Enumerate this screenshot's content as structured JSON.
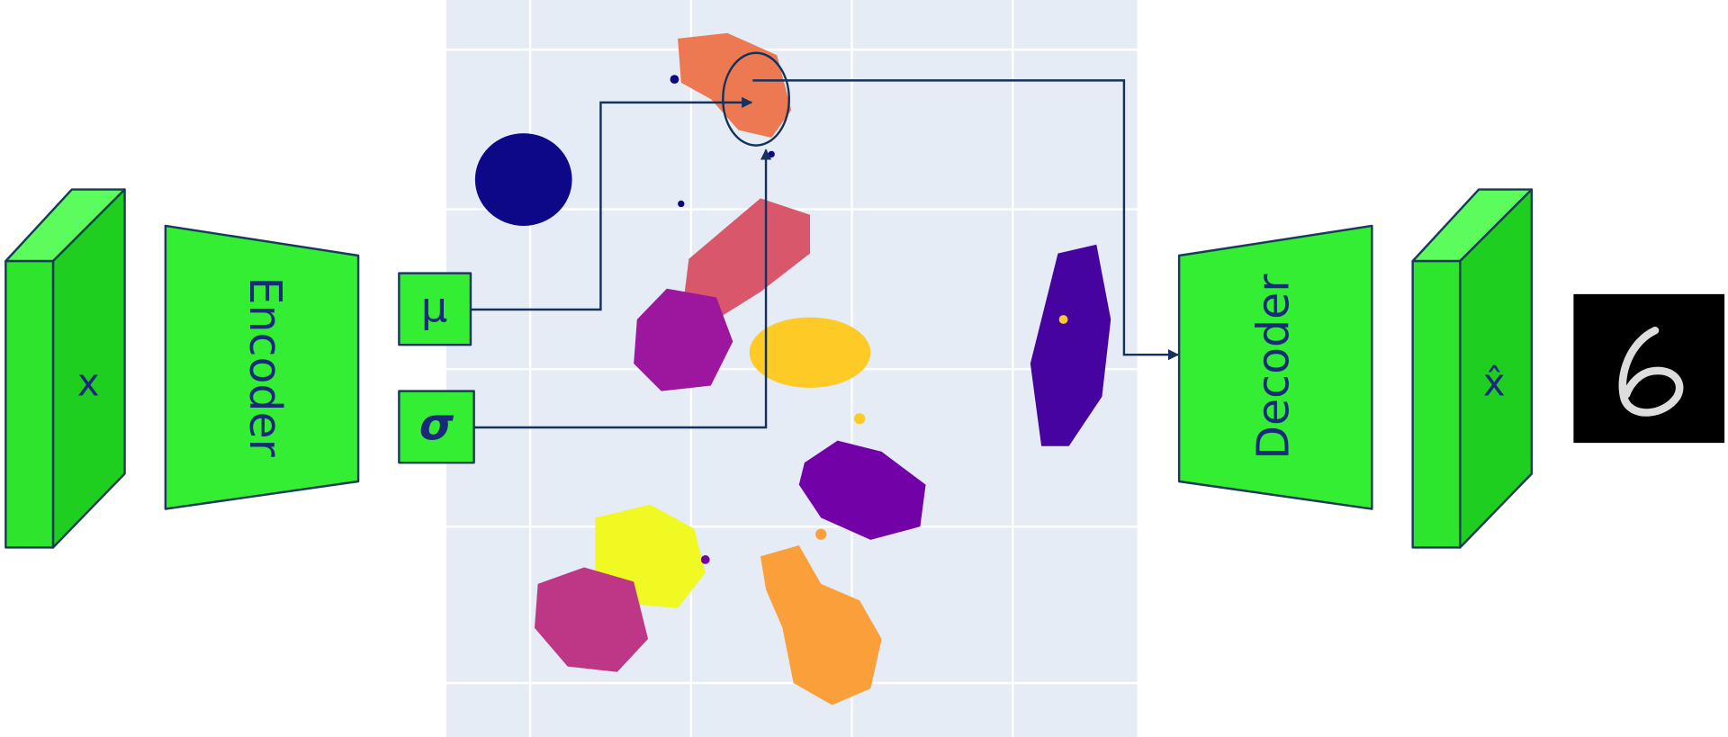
{
  "nodes": [
    {
      "label": "x"
    },
    {
      "label": "Encoder"
    },
    {
      "label": "μ"
    },
    {
      "label": "σ"
    },
    {
      "label": "Decoder"
    },
    {
      "label": "x̂"
    }
  ]
}
